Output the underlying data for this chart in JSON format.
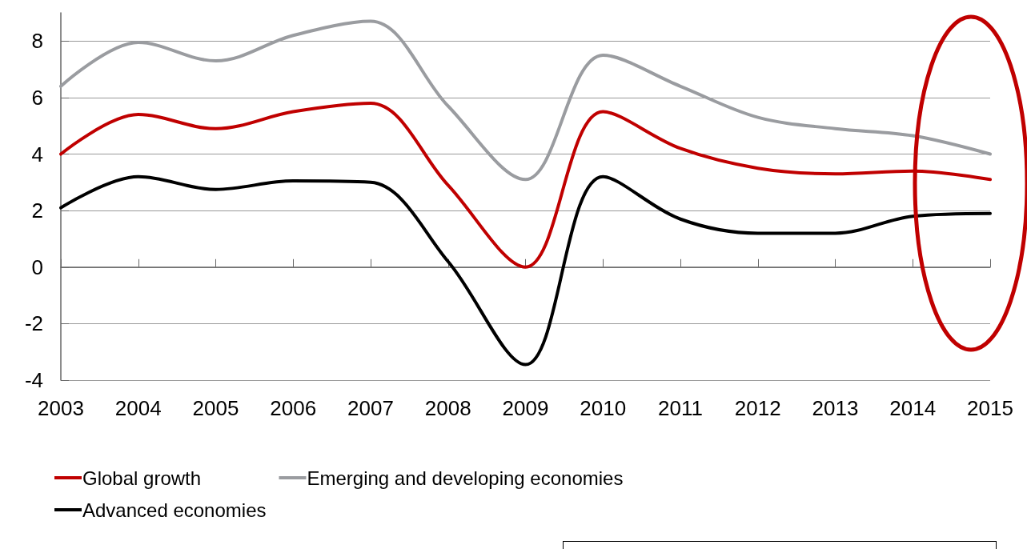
{
  "chart_data": {
    "type": "line",
    "categories": [
      "2003",
      "2004",
      "2005",
      "2006",
      "2007",
      "2008",
      "2009",
      "2010",
      "2011",
      "2012",
      "2013",
      "2014",
      "2015"
    ],
    "series": [
      {
        "name": "Global growth",
        "color": "#c00000",
        "values": [
          4.0,
          5.4,
          4.9,
          5.5,
          5.8,
          2.9,
          0.0,
          5.5,
          4.2,
          3.5,
          3.3,
          3.4,
          3.1
        ]
      },
      {
        "name": "Advanced economies",
        "color": "#000000",
        "values": [
          2.1,
          3.2,
          2.75,
          3.05,
          3.0,
          0.2,
          -3.45,
          3.2,
          1.7,
          1.2,
          1.2,
          1.8,
          1.9
        ]
      },
      {
        "name": "Emerging and developing economies",
        "color": "#9a9ca0",
        "values": [
          6.4,
          7.95,
          7.3,
          8.2,
          8.7,
          5.7,
          3.1,
          7.5,
          6.4,
          5.3,
          4.9,
          4.65,
          4.0
        ]
      }
    ],
    "ylim": [
      -4,
      9
    ],
    "yticks": [
      -4,
      -2,
      0,
      2,
      4,
      6,
      8
    ],
    "grid": "y",
    "legend": "bottom left",
    "marker": "none",
    "line_style": "solid"
  }
}
